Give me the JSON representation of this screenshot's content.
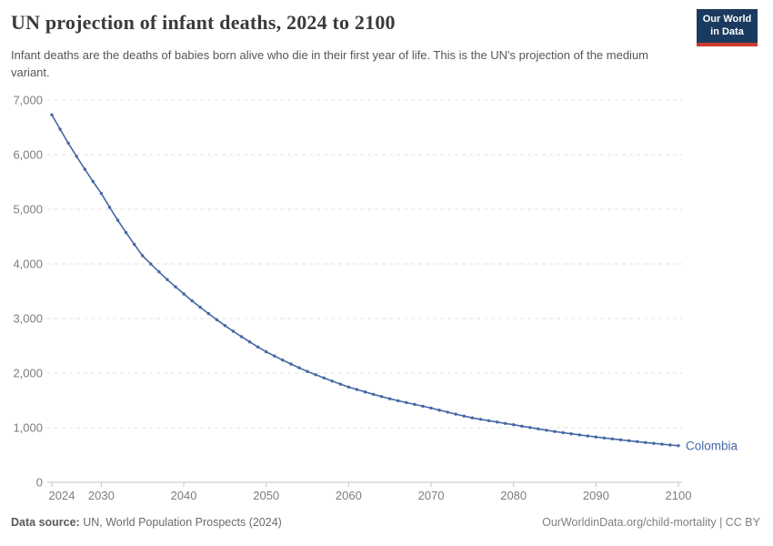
{
  "header": {
    "title": "UN projection of infant deaths, 2024 to 2100",
    "subtitle": "Infant deaths are the deaths of babies born alive who die in their first year of life. This is the UN's projection of the medium variant.",
    "logo": {
      "line1": "Our World",
      "line2": "in Data",
      "bg_color": "#1b3a5f",
      "bar_color": "#cb3a2e"
    }
  },
  "chart_data": {
    "type": "line",
    "title": "UN projection of infant deaths, 2024 to 2100",
    "xlabel": "",
    "ylabel": "",
    "xlim": [
      2024,
      2100
    ],
    "ylim": [
      0,
      7000
    ],
    "xticks": [
      2024,
      2030,
      2040,
      2050,
      2060,
      2070,
      2080,
      2090,
      2100
    ],
    "yticks": [
      0,
      1000,
      2000,
      3000,
      4000,
      5000,
      6000,
      7000
    ],
    "grid": "horizontal-dashed",
    "legend_position": "end-of-line-label",
    "line_color": "#4568a5",
    "grid_color": "#e2e2e2",
    "axis_color": "#c6c6c6",
    "tick_label_color": "#7d7d7d",
    "marker": "circle",
    "series": [
      {
        "name": "Colombia",
        "color": "#4568a5",
        "years": [
          2024,
          2025,
          2026,
          2027,
          2028,
          2029,
          2030,
          2031,
          2032,
          2033,
          2034,
          2035,
          2036,
          2037,
          2038,
          2039,
          2040,
          2041,
          2042,
          2043,
          2044,
          2045,
          2046,
          2047,
          2048,
          2049,
          2050,
          2051,
          2052,
          2053,
          2054,
          2055,
          2056,
          2057,
          2058,
          2059,
          2060,
          2061,
          2062,
          2063,
          2064,
          2065,
          2066,
          2067,
          2068,
          2069,
          2070,
          2071,
          2072,
          2073,
          2074,
          2075,
          2076,
          2077,
          2078,
          2079,
          2080,
          2081,
          2082,
          2083,
          2084,
          2085,
          2086,
          2087,
          2088,
          2089,
          2090,
          2091,
          2092,
          2093,
          2094,
          2095,
          2096,
          2097,
          2098,
          2099,
          2100
        ],
        "values": [
          6730,
          6466,
          6212,
          5968,
          5733,
          5508,
          5290,
          5039,
          4800,
          4573,
          4356,
          4150,
          3999,
          3854,
          3714,
          3580,
          3450,
          3325,
          3205,
          3090,
          2978,
          2870,
          2767,
          2668,
          2572,
          2479,
          2390,
          2313,
          2239,
          2167,
          2097,
          2030,
          1970,
          1911,
          1854,
          1799,
          1745,
          1700,
          1655,
          1612,
          1570,
          1530,
          1494,
          1460,
          1426,
          1393,
          1360,
          1322,
          1285,
          1249,
          1214,
          1180,
          1154,
          1128,
          1103,
          1079,
          1055,
          1029,
          1003,
          978,
          954,
          930,
          909,
          888,
          868,
          849,
          830,
          812,
          795,
          778,
          761,
          745,
          729,
          714,
          699,
          684,
          670
        ]
      }
    ],
    "end_label": "Colombia"
  },
  "footer": {
    "source_label": "Data source:",
    "source_text": " UN, World Population Prospects (2024)",
    "credit": "OurWorldinData.org/child-mortality | CC BY"
  }
}
